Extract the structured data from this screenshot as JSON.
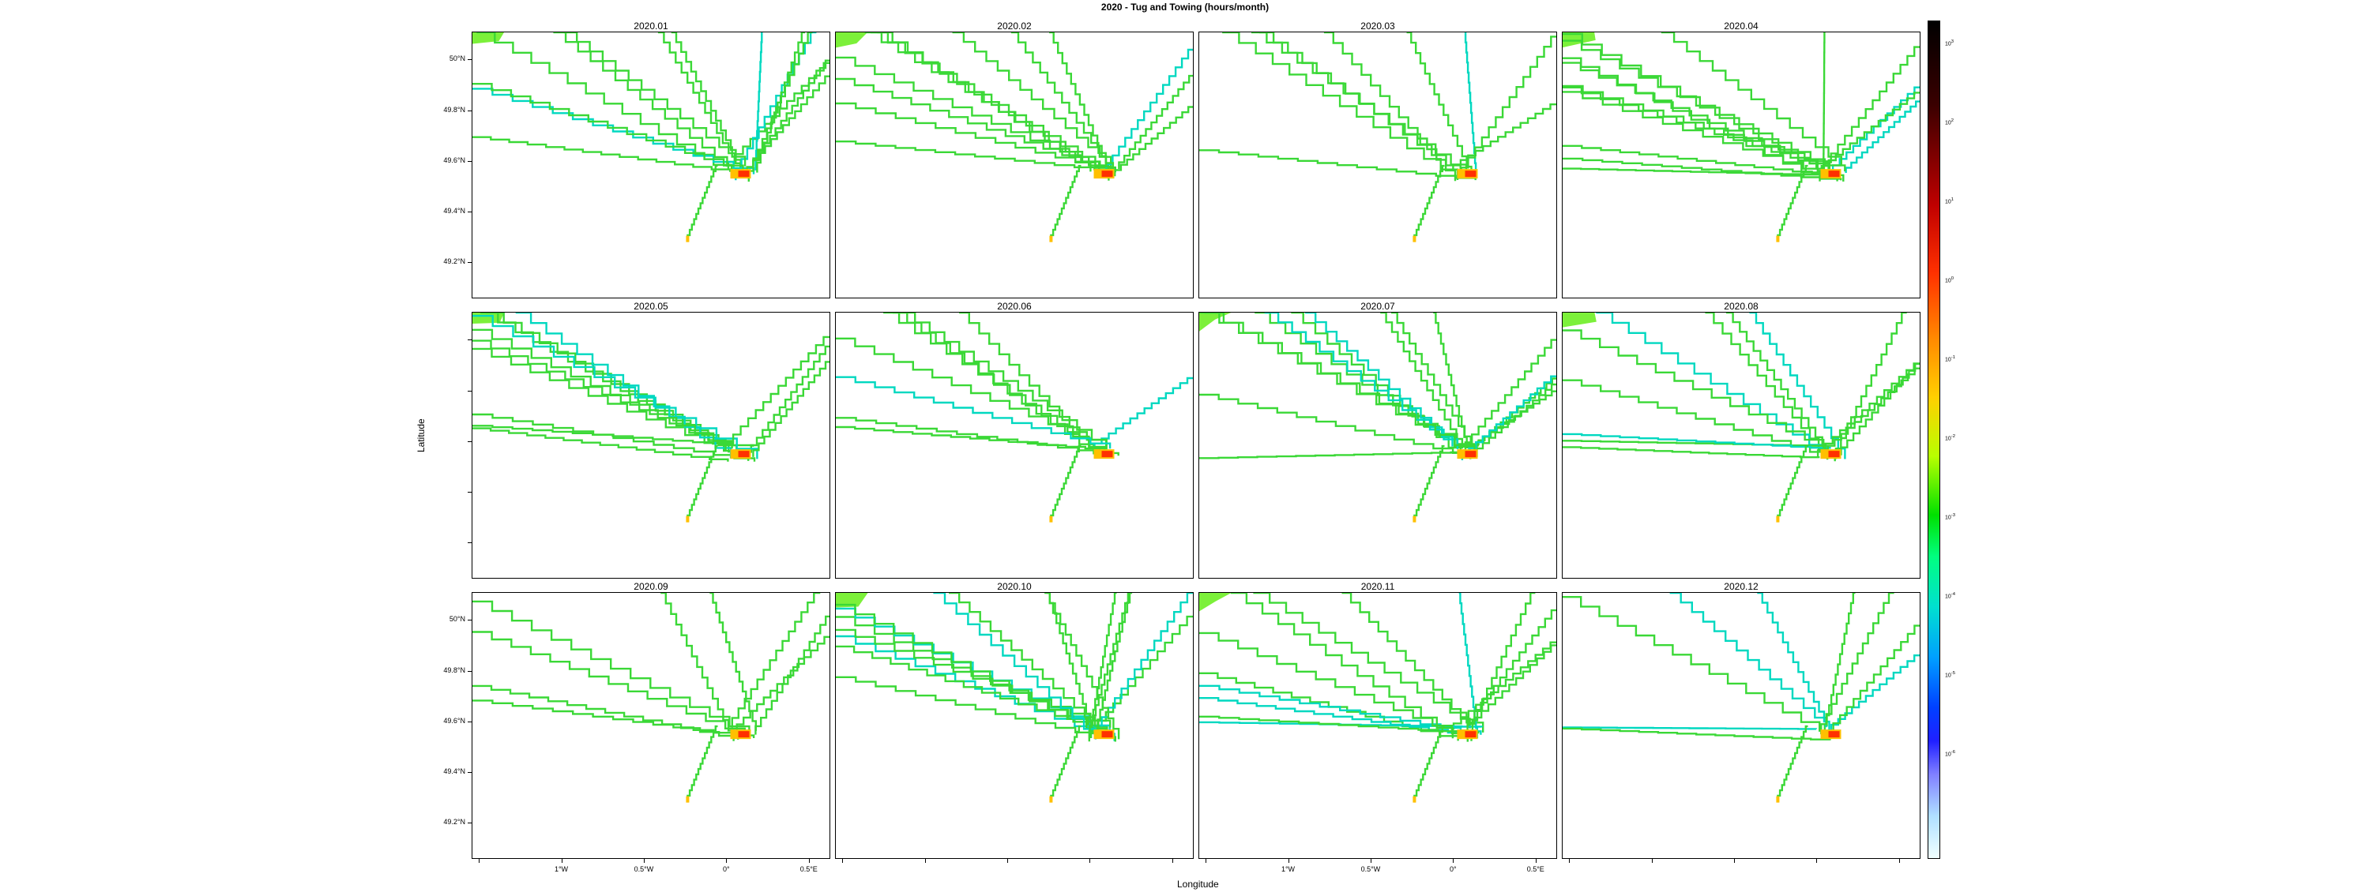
{
  "title": "2020 - Tug and Towing (hours/month)",
  "xlabel": "Longitude",
  "ylabel": "Latitude",
  "panels": [
    "2020.01",
    "2020.02",
    "2020.03",
    "2020.04",
    "2020.05",
    "2020.06",
    "2020.07",
    "2020.08",
    "2020.09",
    "2020.10",
    "2020.11",
    "2020.12"
  ],
  "lat_ticks": [
    "50°N",
    "49.8°N",
    "49.6°N",
    "49.4°N",
    "49.2°N"
  ],
  "lon_ticks": [
    "1°W",
    "0.5°W",
    "0°",
    "0.5°E"
  ],
  "colorbar_ticks": [
    "10^3",
    "10^2",
    "10^1",
    "10^0",
    "10^-1",
    "10^-2",
    "10^-3",
    "10^-4",
    "10^-5",
    "10^-6"
  ],
  "colors": {
    "track": "#3ad836",
    "track_light": "#7cf03a",
    "hot": "#ff3000",
    "warm": "#ffc000",
    "low": "#00d8c0"
  }
}
